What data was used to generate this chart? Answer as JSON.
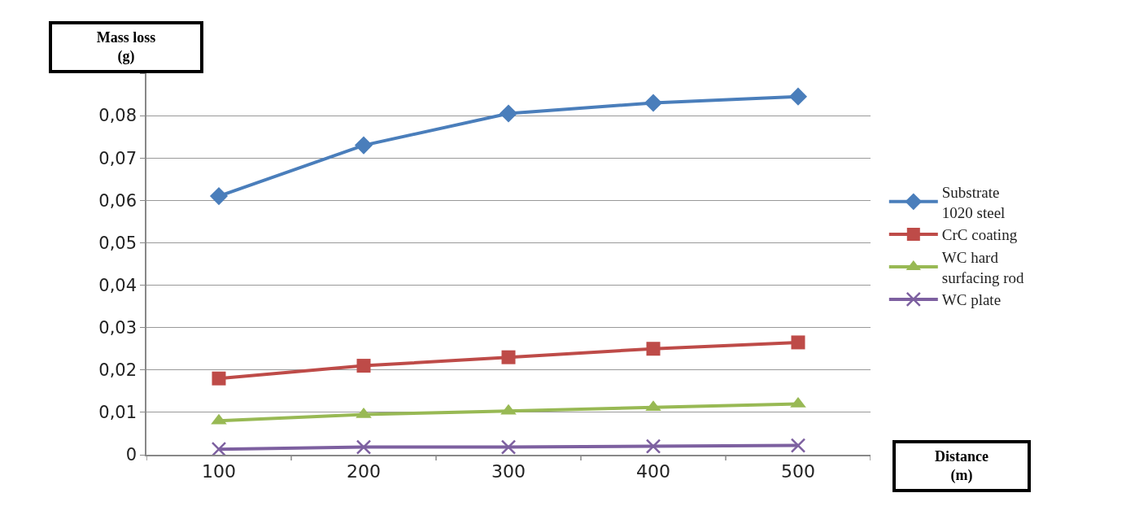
{
  "chart_data": {
    "type": "line",
    "xlabel": "Distance\n(m)",
    "ylabel": "Mass loss\n(g)",
    "categories": [
      "100",
      "200",
      "300",
      "400",
      "500"
    ],
    "series": [
      {
        "name": "Substrate\n1020 steel",
        "color": "#4a7ebb",
        "marker": "diamond",
        "values": [
          0.061,
          0.073,
          0.0805,
          0.083,
          0.0845
        ]
      },
      {
        "name": "CrC coating",
        "color": "#be4b48",
        "marker": "square",
        "values": [
          0.018,
          0.021,
          0.023,
          0.025,
          0.0265
        ]
      },
      {
        "name": "WC hard\nsurfacing rod",
        "color": "#98b954",
        "marker": "triangle",
        "values": [
          0.008,
          0.0095,
          0.0103,
          0.0112,
          0.012
        ]
      },
      {
        "name": "WC plate",
        "color": "#7d60a0",
        "marker": "cross",
        "values": [
          0.0013,
          0.0018,
          0.0018,
          0.002,
          0.0022
        ]
      }
    ],
    "ylim": [
      0,
      0.09
    ],
    "yticks": [
      {
        "value": 0,
        "label": "0"
      },
      {
        "value": 0.01,
        "label": "0,01"
      },
      {
        "value": 0.02,
        "label": "0,02"
      },
      {
        "value": 0.03,
        "label": "0,03"
      },
      {
        "value": 0.04,
        "label": "0,04"
      },
      {
        "value": 0.05,
        "label": "0,05"
      },
      {
        "value": 0.06,
        "label": "0,06"
      },
      {
        "value": 0.07,
        "label": "0,07"
      },
      {
        "value": 0.08,
        "label": "0,08"
      },
      {
        "value": 0.09,
        "label": null
      }
    ],
    "grid": "y",
    "legend": "right",
    "line_style": "solid"
  }
}
